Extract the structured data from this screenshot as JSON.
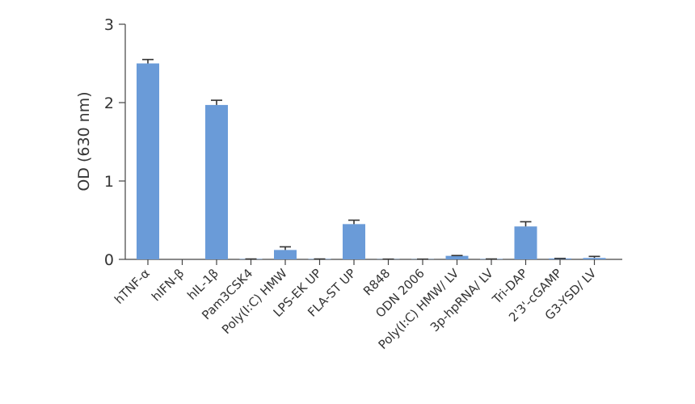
{
  "chart_data": {
    "type": "bar",
    "ylabel": "OD (630 nm)",
    "xlabel": "",
    "ylim": [
      0,
      3
    ],
    "yticks": [
      "0",
      "1",
      "2",
      "3"
    ],
    "grid": false,
    "bar_color": "#6a9bd8",
    "categories": [
      "hTNF-α",
      "hIFN-β",
      "hIL-1β",
      "Pam3CSK4",
      "Poly(I:C) HMW",
      "LPS-EK UP",
      "FLA-ST UP",
      "R848",
      "ODN 2006",
      "Poly(I:C) HMW/ LV",
      "3p-hpRNA/ LV",
      "Tri-DAP",
      "2'3'-cGAMP",
      "G3-YSD/ LV"
    ],
    "values": [
      2.5,
      0.0,
      1.97,
      0.005,
      0.12,
      0.005,
      0.45,
      0.003,
      0.003,
      0.045,
      0.005,
      0.42,
      0.012,
      0.018
    ],
    "errors": [
      0.05,
      0.0,
      0.06,
      0.0,
      0.04,
      0.0,
      0.05,
      0.0,
      0.0,
      0.004,
      0.0,
      0.06,
      0.0,
      0.02
    ]
  }
}
